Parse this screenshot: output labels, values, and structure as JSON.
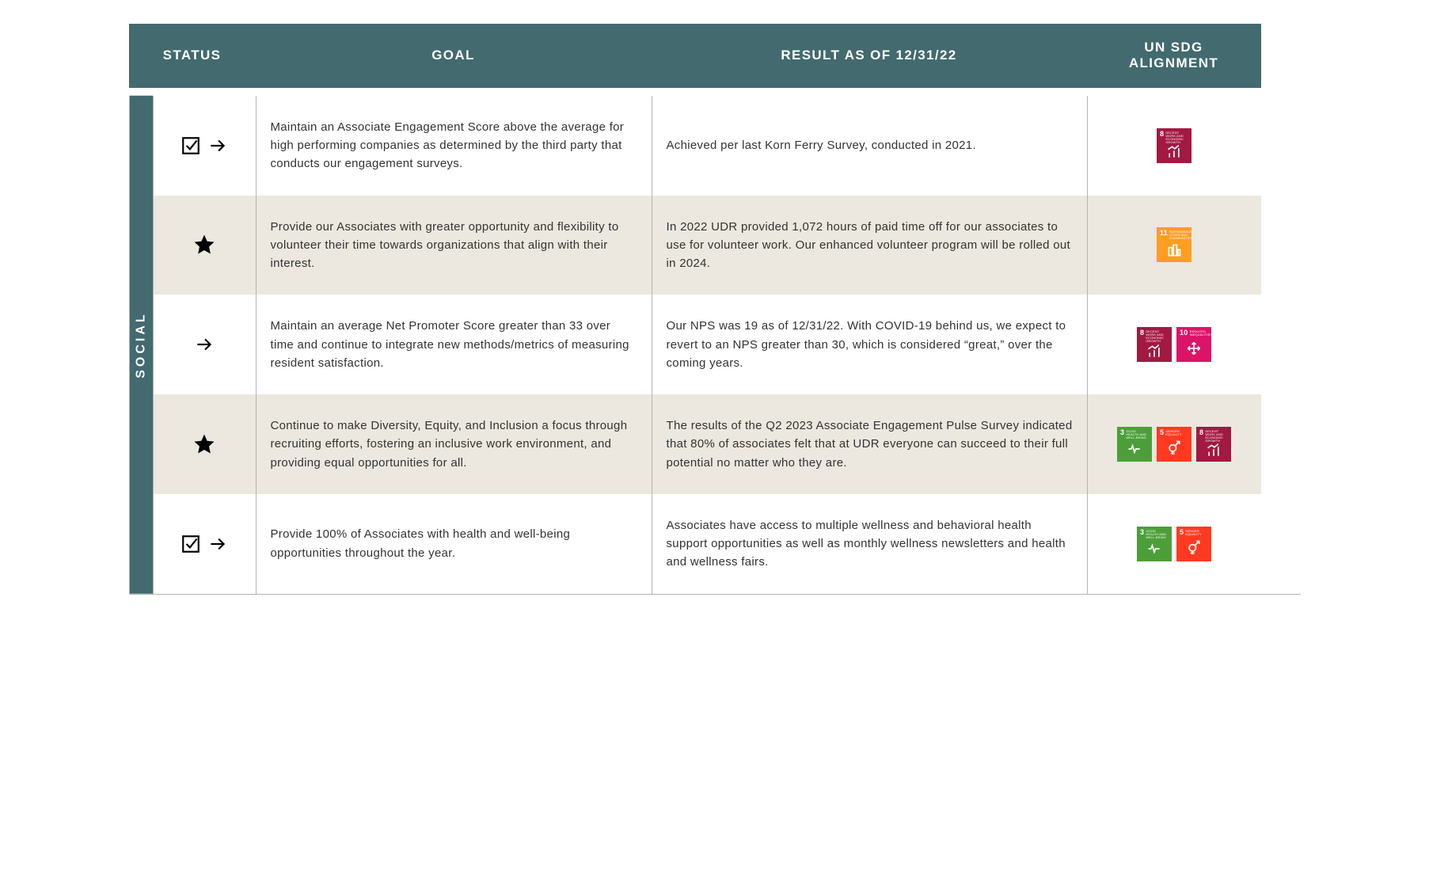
{
  "header": {
    "status": "STATUS",
    "goal": "GOAL",
    "result": "RESULT AS OF 12/31/22",
    "sdg_line1": "UN SDG",
    "sdg_line2": "ALIGNMENT"
  },
  "sidebar_label": "SOCIAL",
  "colors": {
    "header_bg": "#426a6f",
    "row_alt_bg": "#ece8df"
  },
  "sdg_defs": {
    "3": {
      "num": "3",
      "label": "GOOD HEALTH AND WELL-BEING",
      "color": "#4c9f38",
      "glyph": "heartbeat"
    },
    "5": {
      "num": "5",
      "label": "GENDER EQUALITY",
      "color": "#ff3a21",
      "glyph": "gender"
    },
    "8": {
      "num": "8",
      "label": "DECENT WORK AND ECONOMIC GROWTH",
      "color": "#a21942",
      "glyph": "bars"
    },
    "10": {
      "num": "10",
      "label": "REDUCED INEQUALITIES",
      "color": "#dd1367",
      "glyph": "arrows"
    },
    "11": {
      "num": "11",
      "label": "SUSTAINABLE CITIES AND COMMUNITIES",
      "color": "#fd9d24",
      "glyph": "city"
    }
  },
  "rows": [
    {
      "status_icons": [
        "check",
        "arrow"
      ],
      "goal": "Maintain an Associate Engagement Score above the average for high performing companies as determined by the third party that conducts our engagement surveys.",
      "result": "Achieved per last Korn Ferry Survey, conducted in 2021.",
      "sdg": [
        "8"
      ],
      "alt": false
    },
    {
      "status_icons": [
        "star"
      ],
      "goal": "Provide our Associates with greater opportunity and flexibility to volunteer their time towards organizations that align with their interest.",
      "result": "In 2022 UDR provided 1,072 hours of paid time off for our associates to use for volunteer work. Our enhanced volunteer program will be rolled out in 2024.",
      "sdg": [
        "11"
      ],
      "alt": true
    },
    {
      "status_icons": [
        "arrow"
      ],
      "goal": "Maintain an average Net Promoter Score greater than 33 over time and continue to integrate new methods/metrics of measuring resident satisfaction.",
      "result": "Our NPS was 19 as of 12/31/22. With COVID-19 behind us, we expect to revert to an NPS greater than 30, which is considered “great,” over the coming years.",
      "sdg": [
        "8",
        "10"
      ],
      "alt": false
    },
    {
      "status_icons": [
        "star"
      ],
      "goal": "Continue to make Diversity, Equity, and Inclusion a focus through recruiting efforts, fostering an inclusive work environment, and providing equal opportunities for all.",
      "result": "The results of the Q2 2023 Associate Engagement Pulse Survey indicated that 80% of associates felt that at UDR everyone can succeed to their full potential no matter who they are.",
      "sdg": [
        "3",
        "5",
        "8"
      ],
      "alt": true
    },
    {
      "status_icons": [
        "check",
        "arrow"
      ],
      "goal": "Provide 100% of Associates with health and well-being opportunities throughout the year.",
      "result": "Associates have access to multiple wellness and behavioral health support opportunities as well as monthly wellness newsletters and health and wellness fairs.",
      "sdg": [
        "3",
        "5"
      ],
      "alt": false
    }
  ]
}
